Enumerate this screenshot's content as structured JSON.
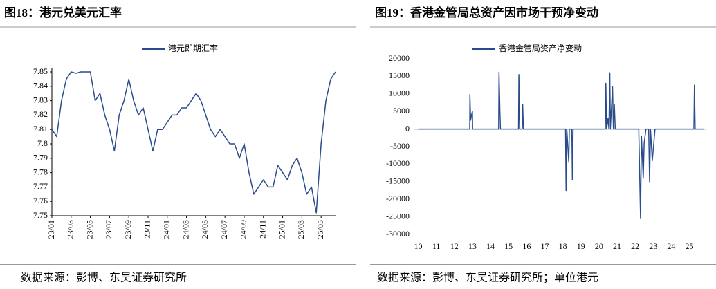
{
  "chart_data": [
    {
      "type": "line",
      "title": "图18：港元兑美元汇率",
      "source": "数据来源：彭博、东吴证券研究所",
      "categories": [
        "23/01",
        null,
        null,
        null,
        "23/03",
        null,
        null,
        null,
        "23/05",
        null,
        null,
        null,
        "23/07",
        null,
        null,
        null,
        "23/09",
        null,
        null,
        null,
        "23/11",
        null,
        null,
        null,
        "24/01",
        null,
        null,
        null,
        "24/03",
        null,
        null,
        null,
        "24/05",
        null,
        null,
        null,
        "24/07",
        null,
        null,
        null,
        "24/09",
        null,
        null,
        null,
        "24/11",
        null,
        null,
        null,
        "25/01",
        null,
        null,
        null,
        "25/03",
        null,
        null,
        null,
        "25/05",
        null,
        null,
        null
      ],
      "series": [
        {
          "name": "港元即期汇率",
          "color": "#2b4c8c",
          "values": [
            7.81,
            7.805,
            7.83,
            7.845,
            7.85,
            7.849,
            7.85,
            7.85,
            7.85,
            7.83,
            7.835,
            7.82,
            7.81,
            7.795,
            7.82,
            7.83,
            7.845,
            7.83,
            7.82,
            7.825,
            7.81,
            7.795,
            7.81,
            7.81,
            7.815,
            7.82,
            7.82,
            7.825,
            7.825,
            7.83,
            7.835,
            7.83,
            7.82,
            7.81,
            7.805,
            7.81,
            7.805,
            7.8,
            7.8,
            7.79,
            7.8,
            7.78,
            7.765,
            7.77,
            7.775,
            7.77,
            7.77,
            7.785,
            7.78,
            7.775,
            7.785,
            7.79,
            7.78,
            7.765,
            7.77,
            7.752,
            7.8,
            7.83,
            7.845,
            7.85
          ]
        }
      ],
      "ylim": [
        7.75,
        7.85
      ],
      "yticks": [
        7.75,
        7.76,
        7.77,
        7.78,
        7.79,
        7.8,
        7.81,
        7.82,
        7.83,
        7.84,
        7.85
      ],
      "grid": false
    },
    {
      "type": "line",
      "title": "图19：香港金管局总资产因市场干预净变动",
      "source": "数据来源：彭博、东吴证券研究所；单位港元",
      "x": [
        10,
        12.85,
        12.86,
        12.9,
        12.95,
        13,
        13.01,
        14.45,
        14.47,
        14.52,
        14.55,
        15.55,
        15.57,
        15.62,
        15.75,
        15.78,
        15.82,
        18.15,
        18.18,
        18.22,
        18.33,
        18.36,
        18.5,
        18.53,
        18.57,
        20.35,
        20.38,
        20.42,
        20.5,
        20.55,
        20.6,
        20.63,
        20.75,
        20.8,
        20.85,
        20.9,
        22.2,
        22.3,
        22.35,
        22.45,
        22.5,
        22.6,
        22.75,
        22.8,
        22.85,
        22.95,
        23.1,
        25.25,
        25.28,
        25.32,
        25.8
      ],
      "series": [
        {
          "name": "香港金管局资产净变动",
          "color": "#2b4c8c",
          "values": [
            0,
            0,
            9800,
            2500,
            4000,
            5000,
            0,
            0,
            16200,
            5000,
            0,
            0,
            15500,
            0,
            0,
            7000,
            0,
            0,
            -17500,
            0,
            -9500,
            0,
            0,
            -14500,
            0,
            0,
            13000,
            0,
            3000,
            0,
            16000,
            0,
            12000,
            0,
            7000,
            0,
            0,
            -25500,
            -2000,
            -14000,
            -4000,
            0,
            0,
            -15000,
            0,
            -9000,
            0,
            0,
            12500,
            0,
            0
          ]
        }
      ],
      "xlim": [
        9.75,
        25.9
      ],
      "xticks": [
        10,
        11,
        12,
        13,
        14,
        15,
        16,
        17,
        18,
        19,
        20,
        21,
        22,
        23,
        24,
        25
      ],
      "ylim": [
        -30000,
        20000
      ],
      "yticks": [
        -30000,
        -25000,
        -20000,
        -15000,
        -10000,
        -5000,
        0,
        5000,
        10000,
        15000,
        20000
      ],
      "grid": false
    }
  ]
}
